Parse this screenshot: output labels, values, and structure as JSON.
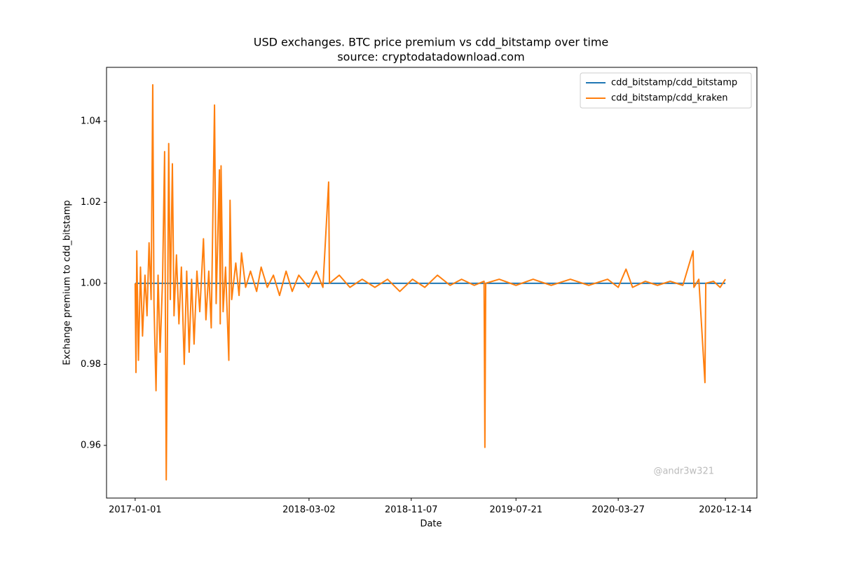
{
  "chart_data": {
    "type": "line",
    "title": "USD exchanges. BTC price premium vs cdd_bitstamp over time",
    "subtitle": "source: cryptodatadownload.com",
    "xlabel": "Date",
    "ylabel": "Exchange premium to cdd_bitstamp",
    "annotation": "@andr3w321",
    "legend": "upper right",
    "grid": false,
    "xlim": [
      "2016-10-23",
      "2021-03-01"
    ],
    "xticks": [
      "2017-01-01",
      "2018-03-02",
      "2018-11-07",
      "2019-07-21",
      "2020-03-27",
      "2020-12-14"
    ],
    "ylim": [
      0.947,
      1.0533
    ],
    "yticks": [
      0.96,
      0.98,
      {
        "value": 1,
        "label": "1.00"
      },
      1.02,
      1.04
    ],
    "series": [
      {
        "name": "cdd_bitstamp/cdd_bitstamp",
        "color": "#1f77b4",
        "x": [
          "2017-01-01",
          "2020-12-14"
        ],
        "values": [
          1,
          1
        ]
      },
      {
        "name": "cdd_bitstamp/cdd_kraken",
        "color": "#ff7f0e",
        "x": [
          "2017-01-01",
          "2017-01-03",
          "2017-01-05",
          "2017-01-09",
          "2017-01-14",
          "2017-01-19",
          "2017-01-25",
          "2017-01-30",
          "2017-02-04",
          "2017-02-09",
          "2017-02-13",
          "2017-02-16",
          "2017-02-21",
          "2017-02-26",
          "2017-03-03",
          "2017-03-09",
          "2017-03-14",
          "2017-03-16",
          "2017-03-18",
          "2017-03-21",
          "2017-03-24",
          "2017-03-28",
          "2017-04-02",
          "2017-04-06",
          "2017-04-12",
          "2017-04-18",
          "2017-04-24",
          "2017-05-01",
          "2017-05-07",
          "2017-05-13",
          "2017-05-19",
          "2017-05-25",
          "2017-06-01",
          "2017-06-08",
          "2017-06-17",
          "2017-06-23",
          "2017-06-30",
          "2017-07-06",
          "2017-07-14",
          "2017-07-18",
          "2017-07-26",
          "2017-07-28",
          "2017-07-30",
          "2017-08-04",
          "2017-08-10",
          "2017-08-18",
          "2017-08-21",
          "2017-08-25",
          "2017-09-04",
          "2017-09-12",
          "2017-09-18",
          "2017-09-28",
          "2017-10-10",
          "2017-10-25",
          "2017-11-05",
          "2017-11-20",
          "2017-12-05",
          "2017-12-20",
          "2018-01-05",
          "2018-01-20",
          "2018-02-05",
          "2018-03-01",
          "2018-03-20",
          "2018-04-05",
          "2018-04-19",
          "2018-04-21",
          "2018-05-15",
          "2018-06-10",
          "2018-07-10",
          "2018-08-10",
          "2018-09-10",
          "2018-10-10",
          "2018-11-10",
          "2018-12-10",
          "2019-01-10",
          "2019-02-10",
          "2019-03-10",
          "2019-04-10",
          "2019-05-04",
          "2019-05-06",
          "2019-05-08",
          "2019-06-10",
          "2019-07-21",
          "2019-09-01",
          "2019-10-15",
          "2019-12-01",
          "2020-01-15",
          "2020-03-01",
          "2020-03-27",
          "2020-04-15",
          "2020-05-01",
          "2020-06-01",
          "2020-07-01",
          "2020-08-01",
          "2020-09-01",
          "2020-09-26",
          "2020-09-28",
          "2020-10-10",
          "2020-10-25",
          "2020-10-27",
          "2020-11-15",
          "2020-12-01",
          "2020-12-14"
        ],
        "values": [
          1.0,
          0.978,
          1.008,
          0.981,
          1.004,
          0.987,
          1.002,
          0.992,
          1.01,
          0.996,
          1.049,
          0.995,
          0.9735,
          1.002,
          0.983,
          1.001,
          1.0325,
          0.99,
          0.9515,
          0.988,
          1.0345,
          0.996,
          1.0295,
          0.992,
          1.007,
          0.99,
          1.004,
          0.98,
          1.003,
          0.983,
          1.001,
          0.985,
          1.003,
          0.993,
          1.011,
          0.991,
          1.003,
          0.989,
          1.044,
          0.995,
          1.028,
          0.99,
          1.029,
          0.993,
          1.004,
          0.981,
          1.0205,
          0.996,
          1.005,
          0.997,
          1.0075,
          0.999,
          1.003,
          0.998,
          1.004,
          0.999,
          1.002,
          0.997,
          1.003,
          0.998,
          1.002,
          0.999,
          1.003,
          0.999,
          1.025,
          1.0,
          1.002,
          0.999,
          1.001,
          0.999,
          1.001,
          0.998,
          1.001,
          0.999,
          1.002,
          0.9995,
          1.001,
          0.9995,
          1.0005,
          0.9595,
          1.0,
          1.001,
          0.9995,
          1.001,
          0.9995,
          1.001,
          0.9995,
          1.001,
          0.999,
          1.0035,
          0.999,
          1.0005,
          0.9995,
          1.0005,
          0.9995,
          1.008,
          0.999,
          1.001,
          0.9755,
          1.0,
          1.0005,
          0.999,
          1.001
        ]
      }
    ]
  }
}
